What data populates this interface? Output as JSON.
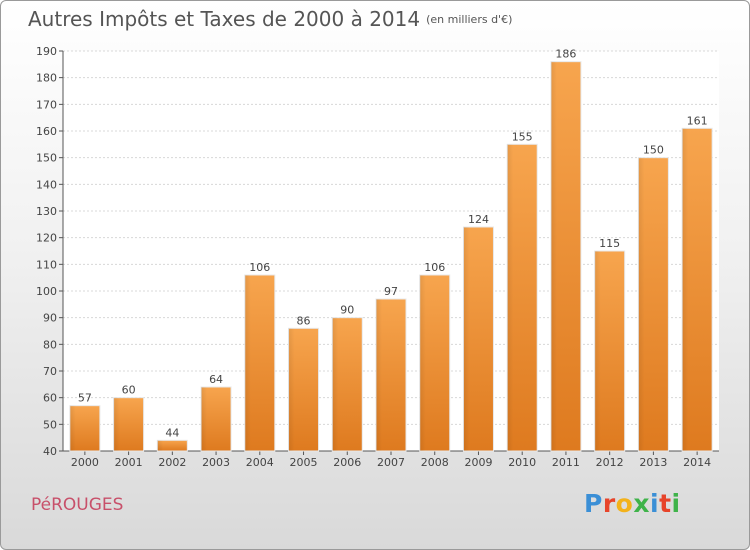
{
  "header": {
    "title": "Autres Impôts et Taxes de 2000 à 2014",
    "unit": "(en milliers d'€)"
  },
  "footer": {
    "commune": "PéROUGES",
    "brand": "Proxiti",
    "brand_colors": [
      "#3b8fd6",
      "#e7442a",
      "#f3b21b",
      "#3fb34a",
      "#3b8fd6",
      "#e7442a",
      "#3fb34a"
    ]
  },
  "chart_data": {
    "type": "bar",
    "title": "Autres Impôts et Taxes de 2000 à 2014",
    "categories": [
      "2000",
      "2001",
      "2002",
      "2003",
      "2004",
      "2005",
      "2006",
      "2007",
      "2008",
      "2009",
      "2010",
      "2011",
      "2012",
      "2013",
      "2014"
    ],
    "values": [
      57,
      60,
      44,
      64,
      106,
      86,
      90,
      97,
      106,
      124,
      155,
      186,
      115,
      150,
      161
    ],
    "ylim": [
      40,
      190
    ],
    "yticks": [
      40,
      50,
      60,
      70,
      80,
      90,
      100,
      110,
      120,
      130,
      140,
      150,
      160,
      170,
      180,
      190
    ],
    "xlabel": "",
    "ylabel": "",
    "grid": true,
    "bar_color": "#f39a3c",
    "data_labels": true
  }
}
